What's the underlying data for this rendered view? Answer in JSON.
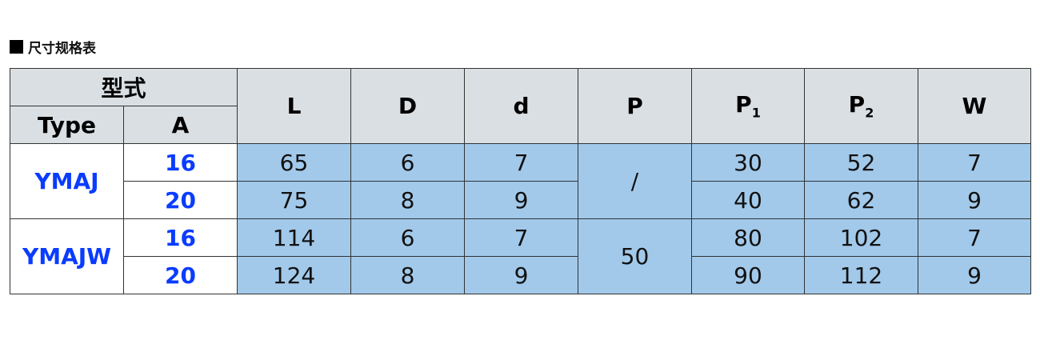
{
  "section_title": "尺寸规格表",
  "header": {
    "model": "型式",
    "type": "Type",
    "a": "A",
    "cols": [
      "L",
      "D",
      "d",
      "P"
    ],
    "p1": "P",
    "p1_sub": "1",
    "p2": "P",
    "p2_sub": "2",
    "w": "W"
  },
  "rows": [
    {
      "type": "YMAJ",
      "a": "16",
      "L": "65",
      "D": "6",
      "d": "7",
      "P": "/",
      "P1": "30",
      "P2": "52",
      "W": "7"
    },
    {
      "a": "20",
      "L": "75",
      "D": "8",
      "d": "9",
      "P1": "40",
      "P2": "62",
      "W": "9"
    },
    {
      "type": "YMAJW",
      "a": "16",
      "L": "114",
      "D": "6",
      "d": "7",
      "P": "50",
      "P1": "80",
      "P2": "102",
      "W": "7"
    },
    {
      "a": "20",
      "L": "124",
      "D": "8",
      "d": "9",
      "P1": "90",
      "P2": "112",
      "W": "9"
    }
  ],
  "colors": {
    "header_bg": "#dadfe3",
    "data_bg": "#a2c9ea",
    "type_text": "#0a3cff"
  }
}
